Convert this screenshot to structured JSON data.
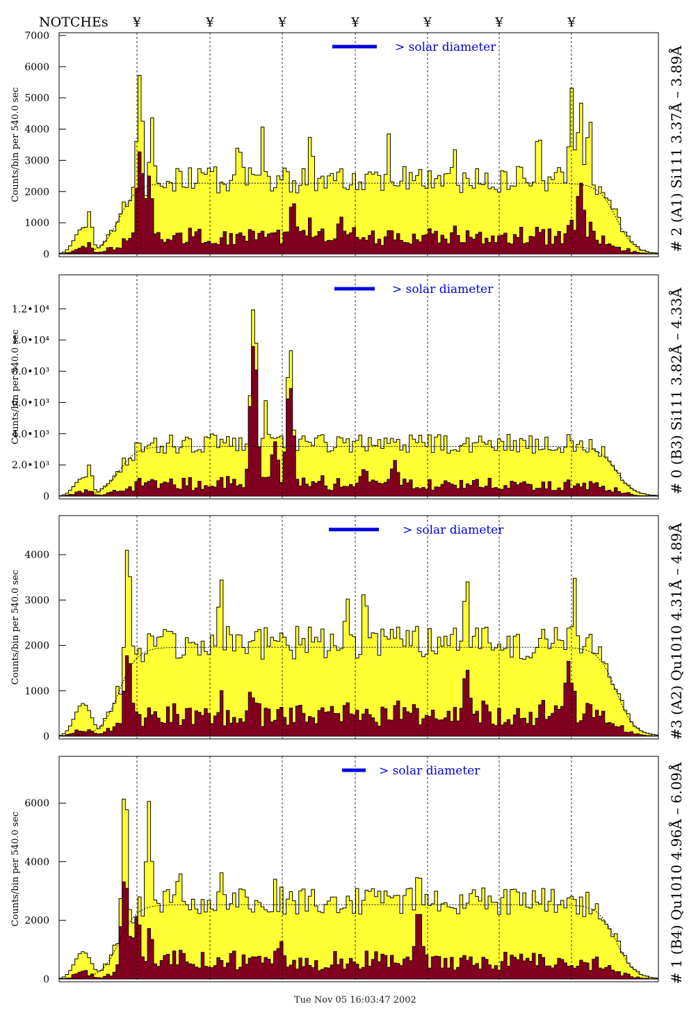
{
  "header": {
    "notches_label": "NOTCHEs",
    "notch_symbol": "¥"
  },
  "footer": {
    "timestamp": "Tue Nov 05 16:03:47 2002"
  },
  "colors": {
    "fill": "#ffff33",
    "dark": "#800020",
    "blue": "#0000dd",
    "frame": "#000000"
  },
  "chart_data": [
    {
      "type": "bar",
      "title": "# 2 (A1) Si111  3.37Å – 3.89Å",
      "ylabel": "Counts/bin per   540.0 sec",
      "legend": "> solar diameter",
      "ylim": [
        0,
        7000
      ],
      "yticks": [
        "0",
        "1000",
        "2000",
        "3000",
        "4000",
        "5000",
        "6000",
        "7000"
      ],
      "peaks": [
        [
          0.05,
          1400
        ],
        [
          0.135,
          6400
        ],
        [
          0.155,
          4800
        ],
        [
          0.3,
          4000
        ],
        [
          0.34,
          4100
        ],
        [
          0.42,
          3900
        ],
        [
          0.55,
          3900
        ],
        [
          0.66,
          3700
        ],
        [
          0.8,
          4100
        ],
        [
          0.855,
          5500
        ],
        [
          0.87,
          5400
        ],
        [
          0.885,
          4900
        ]
      ],
      "dark_peaks": [
        [
          0.135,
          3300
        ],
        [
          0.15,
          2500
        ],
        [
          0.39,
          1700
        ],
        [
          0.47,
          1200
        ],
        [
          0.66,
          900
        ],
        [
          0.87,
          2300
        ]
      ]
    },
    {
      "type": "bar",
      "title": "# 0 (B3) Si111  3.82Å – 4.33Å",
      "ylabel": "Counts/bin per   540.0 sec",
      "legend": "> solar diameter",
      "ylim": [
        0,
        14000
      ],
      "yticks": [
        "0",
        "2.0•10³",
        "4.0•10³",
        "6.0•10³",
        "8.0•10³",
        "1.0•10⁴",
        "1.2•10⁴"
      ],
      "peaks": [
        [
          0.05,
          2000
        ],
        [
          0.255,
          4000
        ],
        [
          0.325,
          12700
        ],
        [
          0.345,
          6200
        ],
        [
          0.385,
          10000
        ],
        [
          0.5,
          3800
        ],
        [
          0.7,
          4000
        ]
      ],
      "dark_peaks": [
        [
          0.325,
          9800
        ],
        [
          0.385,
          7200
        ],
        [
          0.36,
          3500
        ],
        [
          0.51,
          1800
        ],
        [
          0.56,
          2300
        ]
      ]
    },
    {
      "type": "bar",
      "title": "#3 (A2) Qu1010  4.31Å – 4.89Å",
      "ylabel": "Counts/bin per   540.0 sec",
      "legend": "> solar diameter",
      "ylim": [
        0,
        4800
      ],
      "yticks": [
        "0",
        "1000",
        "2000",
        "3000",
        "4000"
      ],
      "peaks": [
        [
          0.115,
          4400
        ],
        [
          0.27,
          3800
        ],
        [
          0.48,
          3300
        ],
        [
          0.51,
          3400
        ],
        [
          0.68,
          3800
        ],
        [
          0.86,
          3800
        ]
      ],
      "dark_peaks": [
        [
          0.115,
          1850
        ],
        [
          0.32,
          1000
        ],
        [
          0.68,
          1500
        ],
        [
          0.85,
          1650
        ]
      ]
    },
    {
      "type": "bar",
      "title": "# 1 (B4) Qu1010 4.96Å – 6.09Å",
      "ylabel": "Counts/bin per   540.0 sec",
      "legend": "> solar diameter",
      "ylim": [
        0,
        7500
      ],
      "yticks": [
        "0",
        "2000",
        "4000",
        "6000"
      ],
      "peaks": [
        [
          0.11,
          6900
        ],
        [
          0.15,
          6600
        ],
        [
          0.2,
          4000
        ],
        [
          0.27,
          3900
        ],
        [
          0.36,
          3500
        ],
        [
          0.6,
          4200
        ]
      ],
      "dark_peaks": [
        [
          0.11,
          3500
        ],
        [
          0.13,
          2300
        ],
        [
          0.6,
          2400
        ],
        [
          0.37,
          1300
        ]
      ]
    }
  ]
}
